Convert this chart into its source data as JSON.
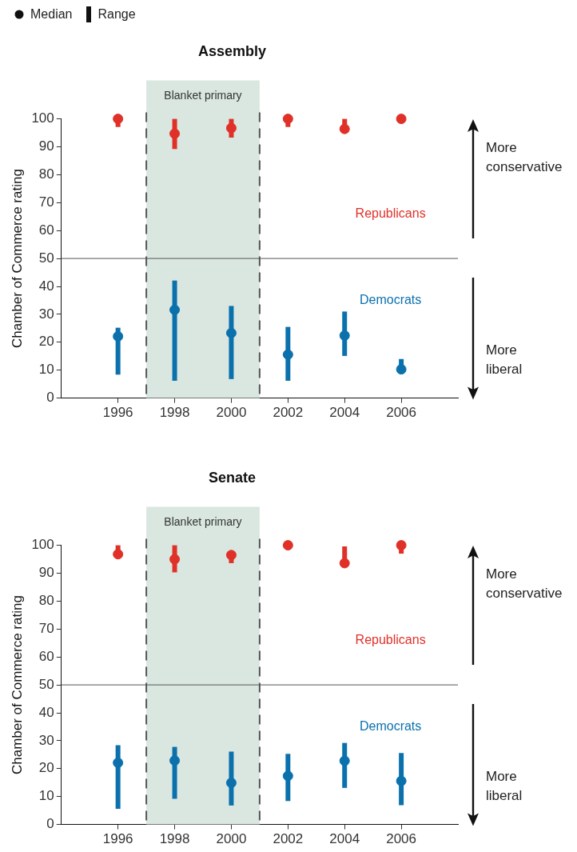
{
  "chart_data": [
    {
      "type": "scatter",
      "title": "Assembly",
      "ylabel": "Chamber of Commerce rating",
      "x": [
        1996,
        1998,
        2000,
        2002,
        2004,
        2006
      ],
      "xlim": [
        1994,
        2008
      ],
      "xticks": [
        1996,
        1998,
        2000,
        2002,
        2004,
        2006
      ],
      "ylim": [
        0,
        100
      ],
      "yticks": [
        0,
        10,
        20,
        30,
        40,
        50,
        60,
        70,
        80,
        90,
        100
      ],
      "grid": false,
      "marker": "circle",
      "series": [
        {
          "name": "Republicans",
          "color": "#e03129",
          "values": [
            100,
            94.7,
            96.7,
            100,
            96.4,
            100
          ],
          "errors": [
            [
              97.1,
              100
            ],
            [
              89.2,
              100
            ],
            [
              93.3,
              100
            ],
            [
              97.1,
              100
            ],
            [
              96.4,
              100
            ],
            [
              100,
              100
            ]
          ]
        },
        {
          "name": "Democrats",
          "color": "#0b71ad",
          "values": [
            22.1,
            31.6,
            23.3,
            15.6,
            22.4,
            10.3
          ],
          "errors": [
            [
              8.4,
              25.2
            ],
            [
              6.2,
              42.1
            ],
            [
              6.8,
              33
            ],
            [
              6.2,
              25.5
            ],
            [
              15.1,
              31
            ],
            [
              10.3,
              14
            ]
          ]
        }
      ],
      "bands": [
        {
          "axis": "x",
          "from": 1997,
          "to": 2001,
          "label": "Blanket primary",
          "color": "#d9e7e0"
        }
      ],
      "ref_lines": [
        {
          "axis": "y",
          "value": 50,
          "color": "#555555"
        },
        {
          "axis": "x",
          "value": 1997,
          "color": "#555555",
          "line_style": "dashed"
        },
        {
          "axis": "x",
          "value": 2001,
          "color": "#555555",
          "line_style": "dashed"
        }
      ],
      "annotations": [
        "More conservative",
        "More liberal",
        "Median",
        "Range"
      ]
    },
    {
      "type": "scatter",
      "title": "Senate",
      "ylabel": "Chamber of Commerce rating",
      "x": [
        1996,
        1998,
        2000,
        2002,
        2004,
        2006
      ],
      "xlim": [
        1994,
        2008
      ],
      "xticks": [
        1996,
        1998,
        2000,
        2002,
        2004,
        2006
      ],
      "ylim": [
        0,
        100
      ],
      "yticks": [
        0,
        10,
        20,
        30,
        40,
        50,
        60,
        70,
        80,
        90,
        100
      ],
      "grid": false,
      "marker": "circle",
      "series": [
        {
          "name": "Republicans",
          "color": "#e03129",
          "values": [
            96.8,
            95,
            96.5,
            100,
            93.6,
            100
          ],
          "errors": [
            [
              96.8,
              100
            ],
            [
              90.3,
              100
            ],
            [
              93.6,
              96.5
            ],
            [
              100,
              100
            ],
            [
              93.6,
              99.6
            ],
            [
              97,
              100
            ]
          ]
        },
        {
          "name": "Democrats",
          "color": "#0b71ad",
          "values": [
            22.1,
            22.9,
            14.9,
            17.4,
            22.8,
            15.6
          ],
          "errors": [
            [
              5.6,
              28.4
            ],
            [
              9.2,
              27.8
            ],
            [
              6.8,
              26.1
            ],
            [
              8.4,
              25.3
            ],
            [
              13.1,
              29.2
            ],
            [
              6.9,
              25.6
            ]
          ]
        }
      ],
      "bands": [
        {
          "axis": "x",
          "from": 1997,
          "to": 2001,
          "label": "Blanket primary",
          "color": "#d9e7e0"
        }
      ],
      "ref_lines": [
        {
          "axis": "y",
          "value": 50,
          "color": "#555555"
        },
        {
          "axis": "x",
          "value": 1997,
          "color": "#555555",
          "line_style": "dashed"
        },
        {
          "axis": "x",
          "value": 2001,
          "color": "#555555",
          "line_style": "dashed"
        }
      ],
      "annotations": [
        "More conservative",
        "More liberal"
      ]
    }
  ]
}
